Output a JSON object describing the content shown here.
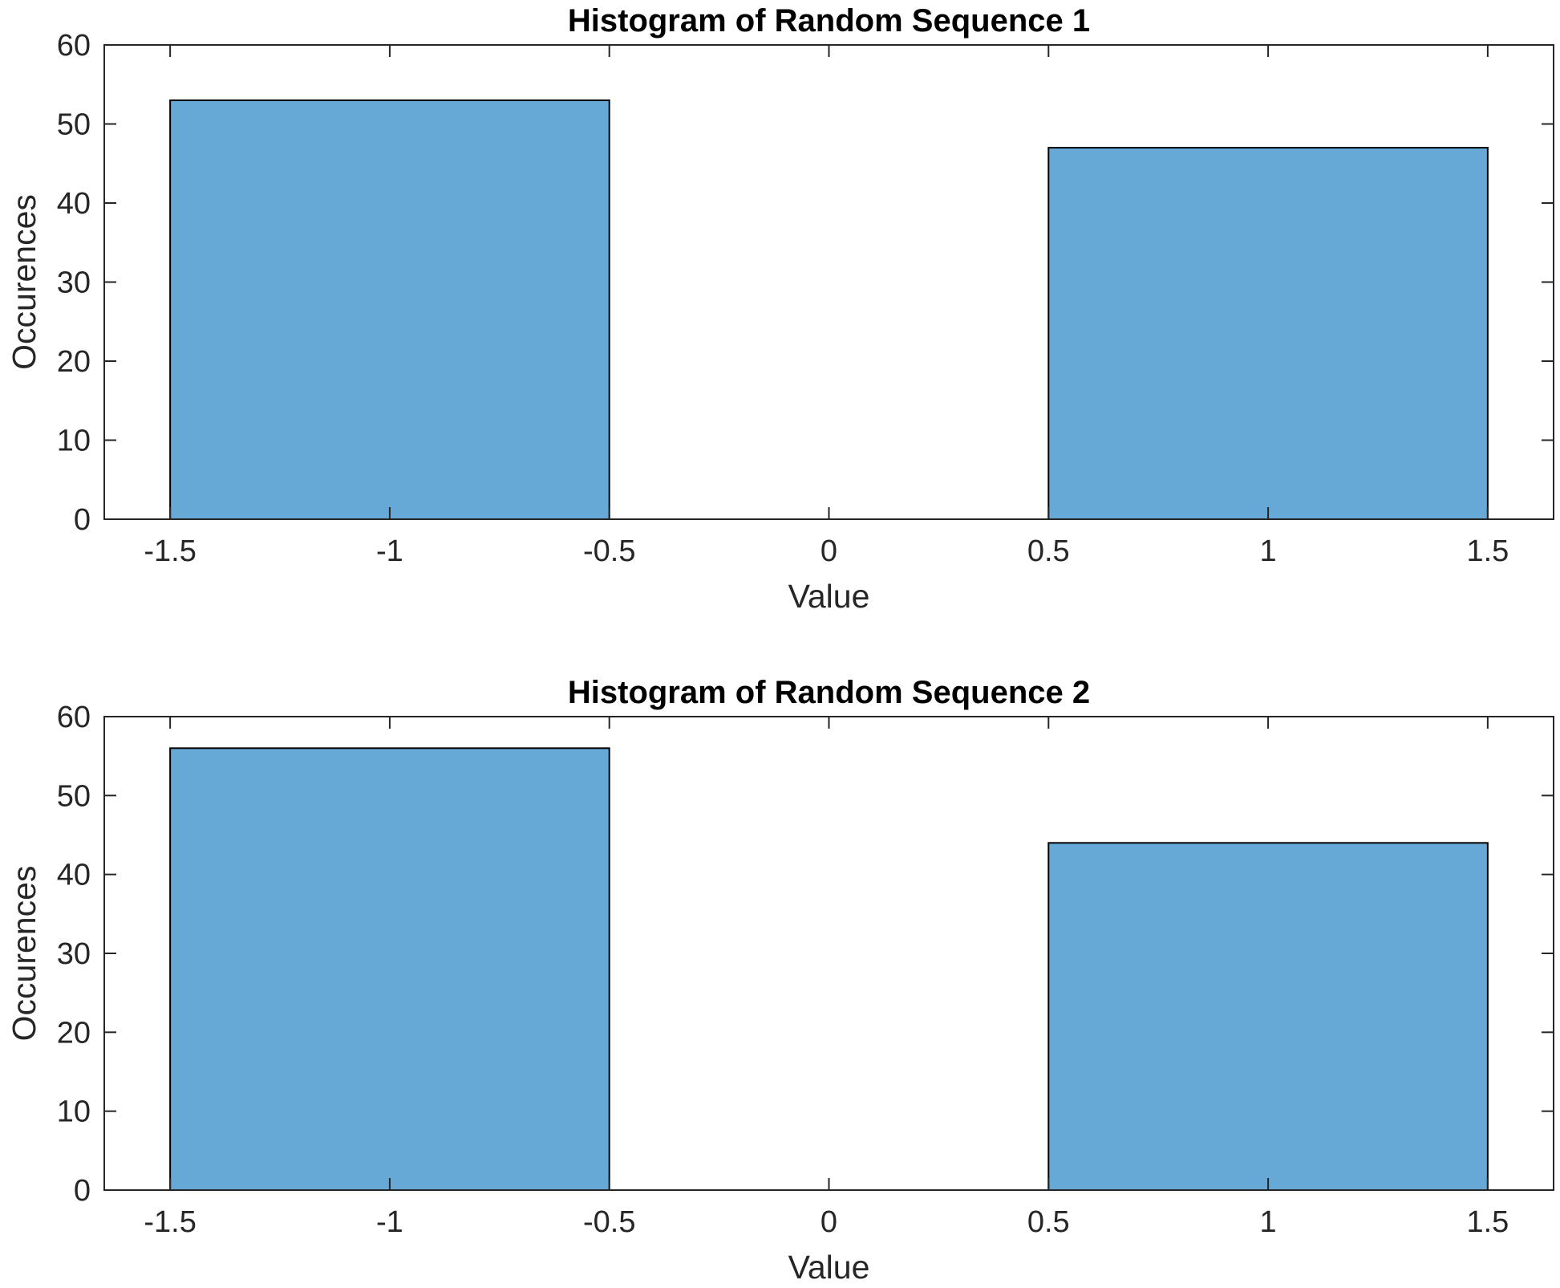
{
  "colors": {
    "bar_fill": "#66a9d6",
    "bar_edge": "#000000",
    "axis": "#262626",
    "background": "#ffffff"
  },
  "chart_data": [
    {
      "type": "bar",
      "title": "Histogram of Random Sequence 1",
      "xlabel": "Value",
      "ylabel": "Occurences",
      "xlim": [
        -1.65,
        1.65
      ],
      "ylim": [
        0,
        60
      ],
      "xticks": [
        -1.5,
        -1,
        -0.5,
        0,
        0.5,
        1,
        1.5
      ],
      "xtick_labels": [
        "-1.5",
        "-1",
        "-0.5",
        "0",
        "0.5",
        "1",
        "1.5"
      ],
      "yticks": [
        0,
        10,
        20,
        30,
        40,
        50,
        60
      ],
      "ytick_labels": [
        "0",
        "10",
        "20",
        "30",
        "40",
        "50",
        "60"
      ],
      "bins": [
        {
          "x0": -1.5,
          "x1": -0.5,
          "value": 53
        },
        {
          "x0": -0.5,
          "x1": 0.5,
          "value": 0
        },
        {
          "x0": 0.5,
          "x1": 1.5,
          "value": 47
        }
      ],
      "grid": false,
      "box": true
    },
    {
      "type": "bar",
      "title": "Histogram of Random Sequence 2",
      "xlabel": "Value",
      "ylabel": "Occurences",
      "xlim": [
        -1.65,
        1.65
      ],
      "ylim": [
        0,
        60
      ],
      "xticks": [
        -1.5,
        -1,
        -0.5,
        0,
        0.5,
        1,
        1.5
      ],
      "xtick_labels": [
        "-1.5",
        "-1",
        "-0.5",
        "0",
        "0.5",
        "1",
        "1.5"
      ],
      "yticks": [
        0,
        10,
        20,
        30,
        40,
        50,
        60
      ],
      "ytick_labels": [
        "0",
        "10",
        "20",
        "30",
        "40",
        "50",
        "60"
      ],
      "bins": [
        {
          "x0": -1.5,
          "x1": -0.5,
          "value": 56
        },
        {
          "x0": -0.5,
          "x1": 0.5,
          "value": 0
        },
        {
          "x0": 0.5,
          "x1": 1.5,
          "value": 44
        }
      ],
      "grid": false,
      "box": true
    }
  ]
}
